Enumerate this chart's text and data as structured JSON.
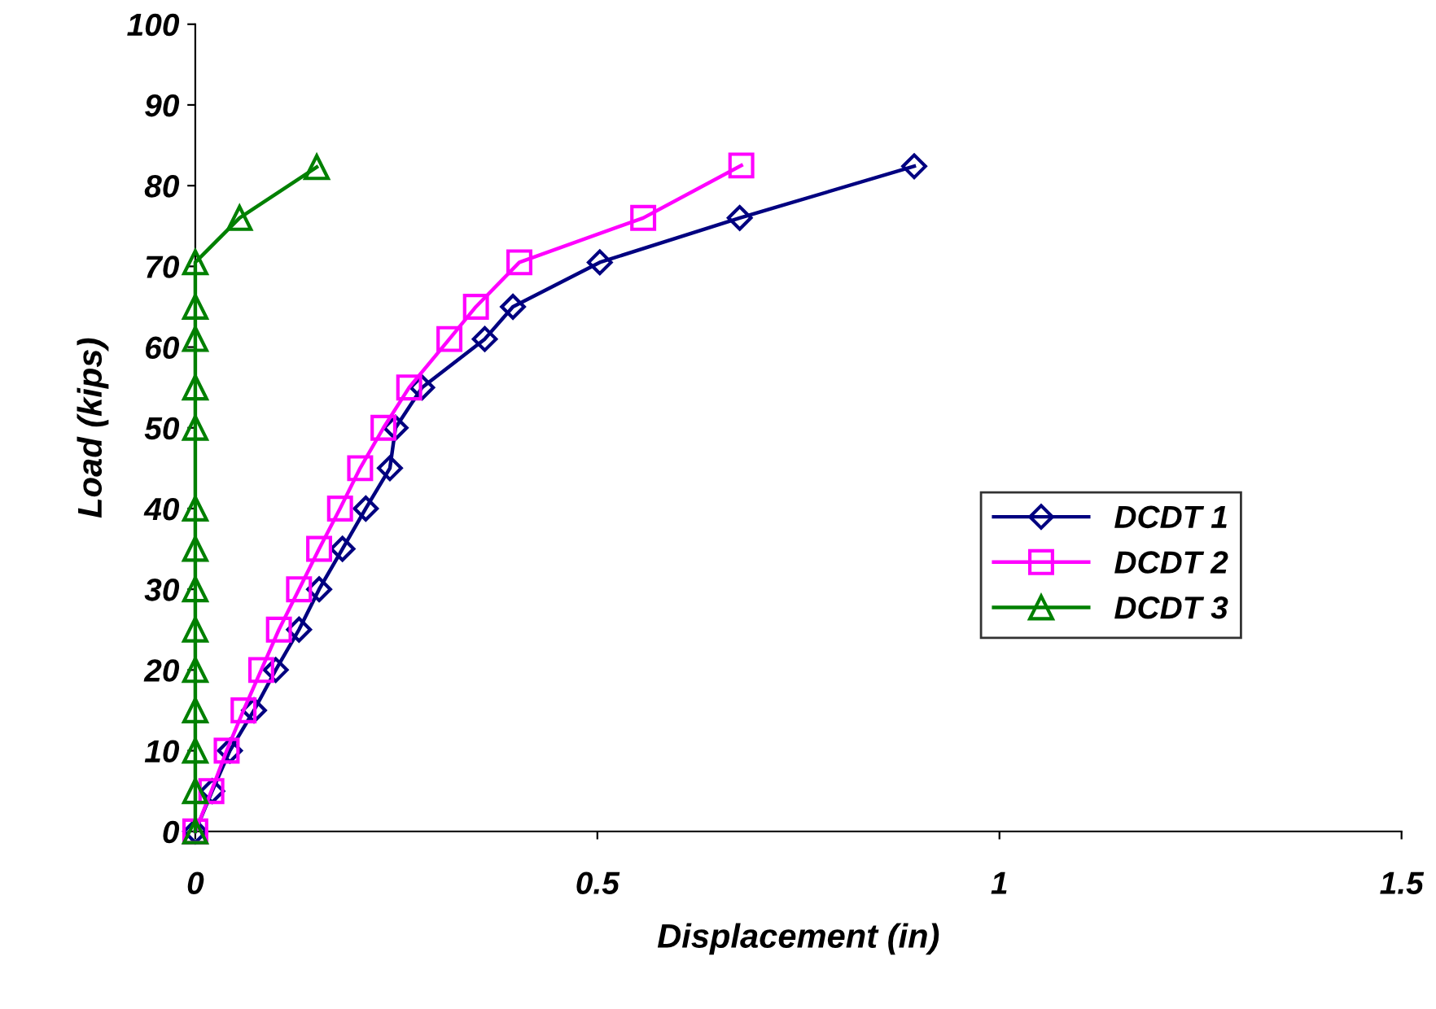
{
  "chart_data": {
    "type": "line",
    "xlabel": "Displacement (in)",
    "ylabel": "Load (kips)",
    "xlim": [
      0,
      1.5
    ],
    "xticks": [
      0,
      0.5,
      1,
      1.5
    ],
    "ylim": [
      0,
      100
    ],
    "yticks": [
      0,
      10,
      20,
      30,
      40,
      50,
      60,
      70,
      80,
      90,
      100
    ],
    "grid": false,
    "legend": "right",
    "series": [
      {
        "name": "DCDT 1",
        "color": "#000080",
        "marker": "diamond",
        "x": [
          0,
          0.021,
          0.043,
          0.073,
          0.1,
          0.129,
          0.154,
          0.183,
          0.212,
          0.242,
          0.249,
          0.282,
          0.36,
          0.395,
          0.503,
          0.677,
          0.894
        ],
        "values": [
          0,
          5,
          10,
          15,
          20,
          25,
          30,
          35,
          40,
          45,
          50,
          55,
          61,
          65,
          70.5,
          76,
          82.4
        ]
      },
      {
        "name": "DCDT 2",
        "color": "#ff00ff",
        "marker": "square",
        "x": [
          0,
          0.02,
          0.039,
          0.06,
          0.082,
          0.104,
          0.129,
          0.154,
          0.18,
          0.205,
          0.234,
          0.266,
          0.316,
          0.349,
          0.403,
          0.557,
          0.679
        ],
        "values": [
          0,
          5,
          10,
          15,
          20,
          25,
          30,
          35,
          40,
          45,
          50,
          55,
          61,
          65,
          70.5,
          76,
          82.5
        ]
      },
      {
        "name": "DCDT 3",
        "color": "#008000",
        "marker": "triangle",
        "x": [
          0,
          0,
          0,
          0,
          0,
          0,
          0,
          0,
          0,
          0,
          0,
          0,
          0,
          0,
          0.055,
          0.151
        ],
        "values": [
          0,
          5,
          10,
          15,
          20,
          25,
          30,
          35,
          40,
          50,
          55,
          61,
          65,
          70.5,
          76,
          82.3
        ]
      }
    ]
  }
}
